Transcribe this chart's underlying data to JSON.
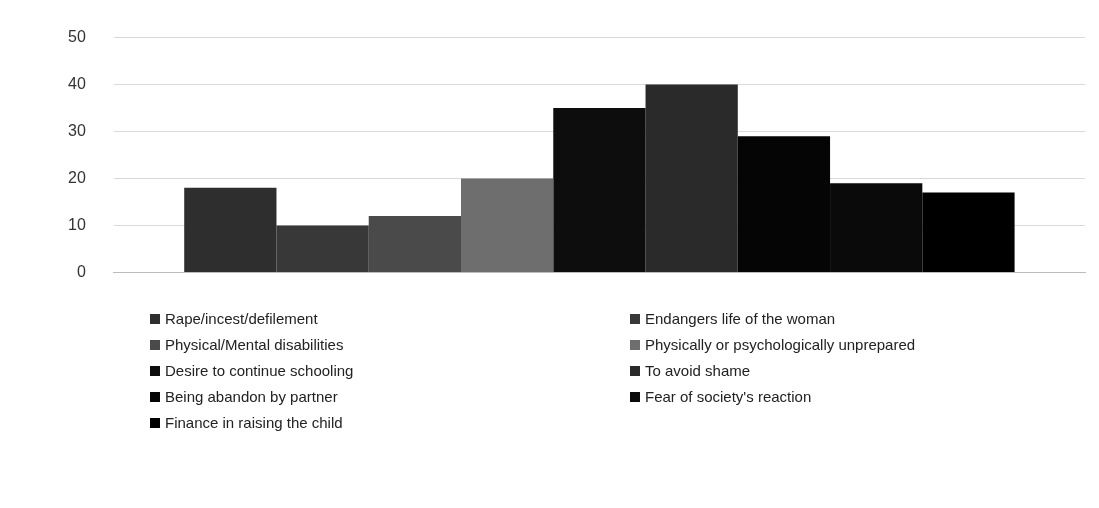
{
  "chart_data": {
    "type": "bar",
    "categories": [
      null
    ],
    "series": [
      {
        "name": "Rape/incest/defilement",
        "color": "#2e2e2e",
        "values": [
          18
        ]
      },
      {
        "name": "Endangers life of the woman",
        "color": "#383838",
        "values": [
          10
        ]
      },
      {
        "name": "Physical/Mental disabilities",
        "color": "#4a4a4a",
        "values": [
          12
        ]
      },
      {
        "name": "Physically or psychologically unprepared",
        "color": "#6e6e6e",
        "values": [
          20
        ]
      },
      {
        "name": "Desire to continue schooling",
        "color": "#0d0d0d",
        "values": [
          35
        ]
      },
      {
        "name": "To avoid shame",
        "color": "#2a2a2a",
        "values": [
          40
        ]
      },
      {
        "name": "Being abandon by partner",
        "color": "#050505",
        "values": [
          29
        ]
      },
      {
        "name": "Fear of society's reaction",
        "color": "#0a0a0a",
        "values": [
          19
        ]
      },
      {
        "name": "Finance in raising the child",
        "color": "#000000",
        "values": [
          17
        ]
      }
    ],
    "ylim": [
      0,
      50
    ],
    "yticks": [
      0,
      10,
      20,
      30,
      40,
      50
    ],
    "grid": "y",
    "legend": "bottom",
    "tick_labels": "y"
  }
}
